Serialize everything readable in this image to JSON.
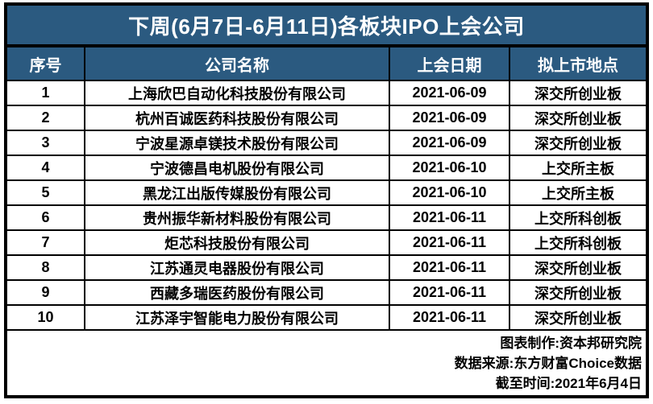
{
  "chart_data": {
    "type": "table",
    "title": "下周(6月7日-6月11日)各板块IPO上会公司",
    "columns": [
      "序号",
      "公司名称",
      "上会日期",
      "拟上市地点"
    ],
    "rows": [
      [
        "1",
        "上海欣巴自动化科技股份有限公司",
        "2021-06-09",
        "深交所创业板"
      ],
      [
        "2",
        "杭州百诚医药科技股份有限公司",
        "2021-06-09",
        "深交所创业板"
      ],
      [
        "3",
        "宁波星源卓镁技术股份有限公司",
        "2021-06-09",
        "深交所创业板"
      ],
      [
        "4",
        "宁波德昌电机股份有限公司",
        "2021-06-10",
        "上交所主板"
      ],
      [
        "5",
        "黑龙江出版传媒股份有限公司",
        "2021-06-10",
        "上交所主板"
      ],
      [
        "6",
        "贵州振华新材料股份有限公司",
        "2021-06-11",
        "上交所科创板"
      ],
      [
        "7",
        "炬芯科技股份有限公司",
        "2021-06-11",
        "上交所科创板"
      ],
      [
        "8",
        "江苏通灵电器股份有限公司",
        "2021-06-11",
        "深交所创业板"
      ],
      [
        "9",
        "西藏多瑞医药股份有限公司",
        "2021-06-11",
        "深交所创业板"
      ],
      [
        "10",
        "江苏泽宇智能电力股份有限公司",
        "2021-06-11",
        "深交所创业板"
      ]
    ]
  },
  "footer": {
    "lines": [
      "图表制作:资本邦研究院",
      "数据来源:东方财富Choice数据",
      "截至时间:2021年6月4日"
    ]
  },
  "colors": {
    "header_bg": "#2B5A80",
    "header_text": "#FFFFFF",
    "body_text": "#000000",
    "body_bg": "#FFFFFF",
    "border": "#000000"
  }
}
